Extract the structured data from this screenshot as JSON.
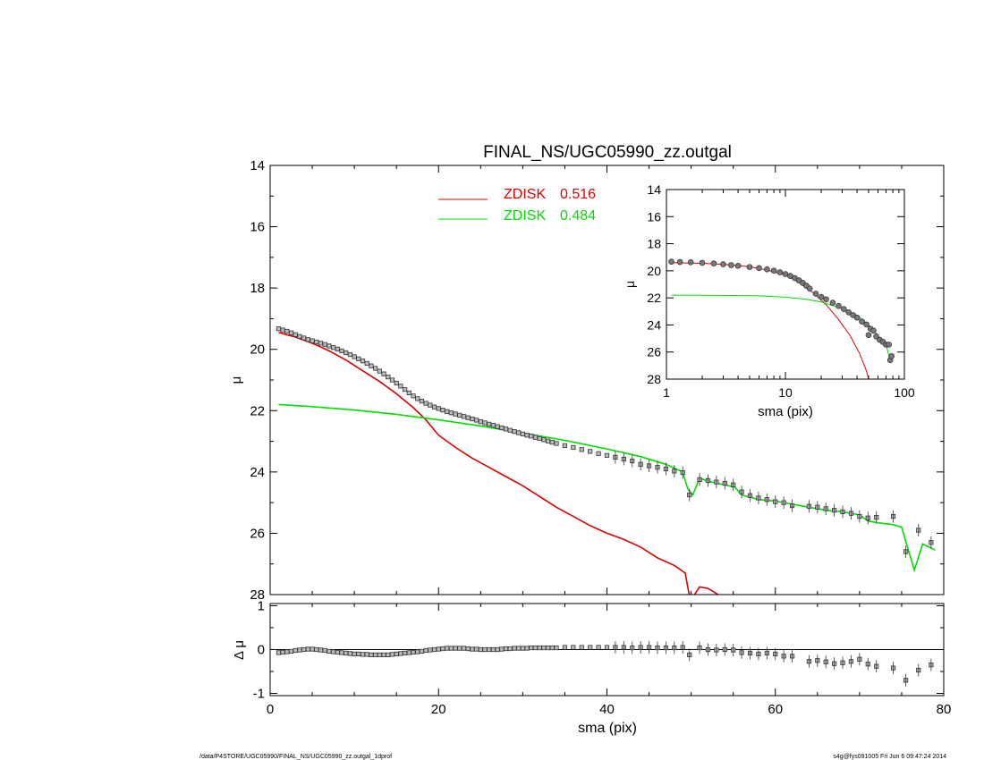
{
  "chart_data": [
    {
      "type": "scatter",
      "title": "FINAL_NS/UGC05990_zz.outgal",
      "xlabel": "",
      "ylabel": "μ",
      "xlim": [
        0,
        80
      ],
      "ylim": [
        28,
        14
      ],
      "y_inverted": true,
      "yticks": [
        14,
        16,
        18,
        20,
        22,
        24,
        26,
        28
      ],
      "xticks": [
        0,
        20,
        40,
        60,
        80
      ],
      "legend_position": "top-center",
      "legend": [
        {
          "label": "ZDISK",
          "value": "0.516",
          "color": "#dd0000"
        },
        {
          "label": "ZDISK",
          "value": "0.484",
          "color": "#00dd00"
        }
      ],
      "series": [
        {
          "name": "ZDISK 0.516",
          "kind": "line",
          "color": "#dd0000",
          "x": [
            1,
            3,
            5,
            7,
            9,
            11,
            13,
            15,
            17,
            18.5,
            20,
            22,
            24,
            26,
            28,
            30,
            32,
            34,
            36,
            38,
            40,
            42,
            44,
            46,
            48,
            49.3,
            49.8,
            50.3,
            51,
            52,
            53.5
          ],
          "y": [
            19.45,
            19.6,
            19.8,
            20.05,
            20.35,
            20.7,
            21.05,
            21.45,
            21.9,
            22.3,
            22.8,
            23.2,
            23.55,
            23.85,
            24.15,
            24.45,
            24.8,
            25.15,
            25.45,
            25.75,
            26.0,
            26.2,
            26.45,
            26.8,
            27.05,
            27.3,
            28.05,
            28.05,
            27.75,
            27.8,
            28.05
          ]
        },
        {
          "name": "ZDISK 0.484",
          "kind": "line",
          "color": "#00dd00",
          "x": [
            1,
            5,
            10,
            15,
            20,
            25,
            30,
            35,
            40,
            44,
            47,
            49,
            49.6,
            50.2,
            51,
            52,
            54,
            55.2,
            56,
            58,
            60,
            62,
            64,
            66,
            68,
            70,
            71,
            72,
            74,
            75,
            75.8,
            76.5,
            77.5,
            79
          ],
          "y": [
            21.8,
            21.87,
            21.98,
            22.12,
            22.3,
            22.5,
            22.73,
            22.97,
            23.25,
            23.5,
            23.75,
            24.0,
            24.55,
            24.75,
            24.2,
            24.3,
            24.42,
            24.5,
            24.75,
            24.9,
            24.95,
            25.05,
            25.15,
            25.25,
            25.3,
            25.4,
            25.6,
            25.65,
            25.72,
            25.8,
            26.55,
            27.2,
            26.35,
            26.55
          ]
        },
        {
          "name": "data",
          "kind": "points",
          "color": "#555555",
          "x": [
            1,
            1.5,
            2,
            2.5,
            3,
            3.5,
            4,
            4.5,
            5,
            5.5,
            6,
            6.5,
            7,
            7.5,
            8,
            8.5,
            9,
            9.5,
            10,
            10.5,
            11,
            11.5,
            12,
            12.5,
            13,
            13.5,
            14,
            14.5,
            15,
            15.5,
            16,
            16.5,
            17,
            17.5,
            18,
            18.5,
            19,
            19.5,
            20,
            20.5,
            21,
            21.5,
            22,
            22.5,
            23,
            23.5,
            24,
            24.5,
            25,
            25.5,
            26,
            26.5,
            27,
            27.5,
            28,
            28.5,
            29,
            29.5,
            30,
            30.5,
            31,
            31.5,
            32,
            32.5,
            33,
            33.5,
            34,
            35,
            36,
            37,
            38,
            39,
            40,
            41,
            42,
            43,
            44,
            45,
            46,
            47,
            48,
            49,
            49.8,
            51,
            52,
            53,
            54,
            55,
            56,
            57,
            58,
            59,
            60,
            61,
            62,
            64,
            65,
            66,
            67,
            68,
            69,
            70,
            71,
            72,
            74,
            75.5,
            77,
            78.5
          ],
          "y": [
            19.33,
            19.37,
            19.41,
            19.46,
            19.52,
            19.58,
            19.63,
            19.68,
            19.72,
            19.76,
            19.8,
            19.84,
            19.89,
            19.94,
            19.99,
            20.05,
            20.11,
            20.17,
            20.24,
            20.31,
            20.38,
            20.46,
            20.54,
            20.62,
            20.71,
            20.8,
            20.9,
            21.0,
            21.1,
            21.2,
            21.31,
            21.42,
            21.52,
            21.61,
            21.69,
            21.76,
            21.82,
            21.88,
            21.93,
            21.98,
            22.03,
            22.07,
            22.11,
            22.15,
            22.19,
            22.23,
            22.27,
            22.31,
            22.36,
            22.4,
            22.44,
            22.48,
            22.52,
            22.56,
            22.6,
            22.64,
            22.68,
            22.72,
            22.76,
            22.8,
            22.83,
            22.87,
            22.91,
            22.95,
            22.99,
            23.03,
            23.07,
            23.14,
            23.2,
            23.27,
            23.33,
            23.4,
            23.46,
            23.52,
            23.58,
            23.64,
            23.75,
            23.8,
            23.85,
            23.9,
            23.97,
            24.02,
            24.75,
            24.25,
            24.28,
            24.33,
            24.37,
            24.42,
            24.65,
            24.77,
            24.85,
            24.9,
            24.97,
            25.0,
            25.1,
            25.12,
            25.15,
            25.2,
            25.25,
            25.3,
            25.35,
            25.45,
            25.5,
            25.48,
            25.45,
            26.6,
            25.9,
            26.3
          ]
        }
      ]
    },
    {
      "type": "scatter",
      "title": "",
      "xlabel": "sma (pix)",
      "ylabel": "μ",
      "x_scale": "log",
      "xlim": [
        1,
        100
      ],
      "ylim": [
        28,
        14
      ],
      "y_inverted": true,
      "yticks": [
        14,
        16,
        18,
        20,
        22,
        24,
        26,
        28
      ],
      "xticks": [
        1,
        10,
        100
      ],
      "series": [
        {
          "name": "ZDISK 0.516",
          "kind": "line",
          "color": "#dd0000",
          "x": [
            1.1,
            2,
            3,
            5,
            7,
            10,
            13,
            17,
            22,
            28,
            35,
            42,
            48,
            50
          ],
          "y": [
            19.4,
            19.45,
            19.52,
            19.7,
            19.95,
            20.3,
            20.85,
            21.6,
            22.5,
            23.6,
            24.8,
            26.1,
            27.4,
            28.0
          ]
        },
        {
          "name": "ZDISK 0.484",
          "kind": "line",
          "color": "#00dd00",
          "x": [
            1.1,
            3,
            6,
            10,
            15,
            20,
            30,
            40,
            50,
            60,
            70,
            75,
            78
          ],
          "y": [
            21.8,
            21.82,
            21.85,
            21.95,
            22.1,
            22.3,
            22.8,
            23.3,
            24.0,
            24.8,
            25.4,
            26.5,
            26.7
          ]
        },
        {
          "name": "data",
          "kind": "points",
          "color": "#555555",
          "x": [
            1.1,
            1.3,
            1.6,
            2,
            2.5,
            3,
            3.5,
            4,
            5,
            6,
            7,
            8,
            9,
            10,
            11,
            12,
            13,
            14,
            15,
            16,
            18,
            20,
            22,
            25,
            28,
            31,
            34,
            37,
            40,
            44,
            48,
            50,
            52,
            55,
            58,
            62,
            66,
            70,
            74,
            76,
            78
          ],
          "y": [
            19.33,
            19.35,
            19.37,
            19.41,
            19.46,
            19.52,
            19.58,
            19.63,
            19.72,
            19.8,
            19.89,
            19.99,
            20.11,
            20.24,
            20.38,
            20.54,
            20.71,
            20.9,
            21.1,
            21.31,
            21.69,
            21.93,
            22.11,
            22.36,
            22.6,
            22.83,
            23.07,
            23.27,
            23.46,
            23.75,
            23.97,
            24.75,
            24.28,
            24.42,
            24.85,
            25.1,
            25.25,
            25.45,
            25.45,
            26.6,
            26.3
          ]
        }
      ]
    },
    {
      "type": "scatter",
      "title": "",
      "xlabel": "sma (pix)",
      "ylabel": "Δ μ",
      "xlim": [
        0,
        80
      ],
      "ylim": [
        -1.05,
        1.05
      ],
      "yticks": [
        1,
        0,
        -1
      ],
      "xticks": [
        0,
        20,
        40,
        60,
        80
      ],
      "reference_line": 0,
      "series": [
        {
          "name": "residual",
          "kind": "points",
          "color": "#555555",
          "x": [
            1,
            1.5,
            2,
            2.5,
            3,
            3.5,
            4,
            4.5,
            5,
            5.5,
            6,
            6.5,
            7,
            7.5,
            8,
            8.5,
            9,
            9.5,
            10,
            10.5,
            11,
            11.5,
            12,
            12.5,
            13,
            13.5,
            14,
            14.5,
            15,
            15.5,
            16,
            16.5,
            17,
            17.5,
            18,
            18.5,
            19,
            19.5,
            20,
            20.5,
            21,
            21.5,
            22,
            22.5,
            23,
            23.5,
            24,
            24.5,
            25,
            25.5,
            26,
            26.5,
            27,
            27.5,
            28,
            28.5,
            29,
            29.5,
            30,
            30.5,
            31,
            31.5,
            32,
            32.5,
            33,
            33.5,
            34,
            35,
            36,
            37,
            38,
            39,
            40,
            41,
            42,
            43,
            44,
            45,
            46,
            47,
            48,
            49,
            49.8,
            51,
            52,
            53,
            54,
            55,
            56,
            57,
            58,
            59,
            60,
            61,
            62,
            64,
            65,
            66,
            67,
            68,
            69,
            70,
            71,
            72,
            74,
            75.5,
            77,
            78.5
          ],
          "y": [
            -0.07,
            -0.06,
            -0.05,
            -0.04,
            -0.02,
            -0.01,
            0.0,
            0.01,
            0.01,
            0.0,
            -0.01,
            -0.02,
            -0.04,
            -0.05,
            -0.06,
            -0.07,
            -0.08,
            -0.09,
            -0.1,
            -0.1,
            -0.11,
            -0.11,
            -0.12,
            -0.12,
            -0.12,
            -0.12,
            -0.12,
            -0.11,
            -0.1,
            -0.09,
            -0.08,
            -0.07,
            -0.06,
            -0.05,
            -0.04,
            -0.02,
            -0.01,
            0.0,
            0.01,
            0.02,
            0.03,
            0.03,
            0.03,
            0.03,
            0.03,
            0.02,
            0.01,
            0.01,
            0.0,
            0.0,
            0.0,
            0.0,
            0.0,
            0.01,
            0.02,
            0.02,
            0.03,
            0.03,
            0.03,
            0.03,
            0.04,
            0.04,
            0.04,
            0.04,
            0.04,
            0.04,
            0.04,
            0.05,
            0.05,
            0.05,
            0.05,
            0.05,
            0.05,
            0.05,
            0.05,
            0.04,
            0.05,
            0.05,
            0.04,
            0.04,
            0.04,
            0.05,
            -0.12,
            0.04,
            0.0,
            -0.01,
            0.0,
            -0.01,
            -0.07,
            -0.08,
            -0.1,
            -0.08,
            -0.1,
            -0.15,
            -0.15,
            -0.27,
            -0.25,
            -0.28,
            -0.32,
            -0.3,
            -0.27,
            -0.22,
            -0.33,
            -0.38,
            -0.42,
            -0.7,
            -0.47,
            -0.35
          ]
        }
      ]
    }
  ],
  "footer": {
    "left": "/data/P4STORE/UGC05990/FINAL_NS/UGC05990_zz.outgal_1dprof",
    "right": "s4g@fys091005  Fri Jun  6 09:47:24 2014"
  }
}
